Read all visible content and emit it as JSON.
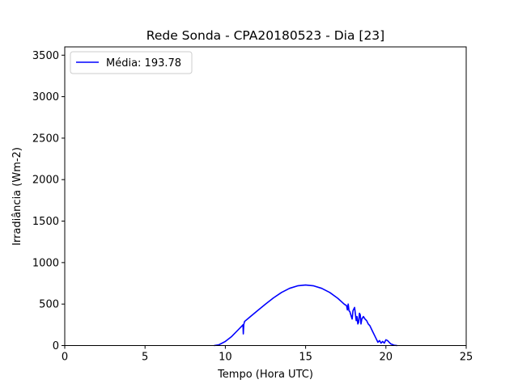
{
  "chart_data": {
    "type": "line",
    "title": "Rede Sonda - CPA20180523 - Dia [23]",
    "xlabel": "Tempo (Hora UTC)",
    "ylabel": "Irradiância (Wm-2)",
    "xlim": [
      0,
      25
    ],
    "ylim": [
      0,
      3600
    ],
    "x_ticks": [
      0,
      5,
      10,
      15,
      20,
      25
    ],
    "y_ticks": [
      0,
      500,
      1000,
      1500,
      2000,
      2500,
      3000,
      3500
    ],
    "grid": false,
    "legend_position": "upper-left",
    "series": [
      {
        "name": "Média: 193.78",
        "color": "#0000ff",
        "x": [
          9.3,
          9.6,
          10.0,
          10.4,
          10.8,
          11.05,
          11.1,
          11.12,
          11.15,
          11.2,
          11.5,
          12.0,
          12.5,
          13.0,
          13.5,
          14.0,
          14.5,
          15.0,
          15.5,
          16.0,
          16.5,
          17.0,
          17.4,
          17.55,
          17.6,
          17.65,
          17.7,
          17.75,
          17.85,
          17.9,
          17.95,
          18.0,
          18.05,
          18.1,
          18.15,
          18.2,
          18.25,
          18.3,
          18.35,
          18.4,
          18.45,
          18.5,
          18.6,
          18.7,
          18.8,
          18.9,
          19.0,
          19.1,
          19.2,
          19.3,
          19.4,
          19.5,
          19.6,
          19.7,
          19.8,
          19.9,
          20.0,
          20.1,
          20.2,
          20.3,
          20.5,
          20.7
        ],
        "y": [
          0,
          10,
          50,
          110,
          190,
          240,
          250,
          140,
          255,
          290,
          340,
          420,
          500,
          575,
          640,
          690,
          720,
          730,
          720,
          690,
          640,
          570,
          500,
          480,
          430,
          500,
          420,
          410,
          350,
          320,
          420,
          440,
          460,
          380,
          300,
          350,
          260,
          280,
          390,
          370,
          260,
          320,
          350,
          320,
          300,
          260,
          240,
          200,
          160,
          120,
          80,
          40,
          60,
          30,
          50,
          30,
          70,
          60,
          40,
          20,
          5,
          0
        ]
      }
    ]
  }
}
